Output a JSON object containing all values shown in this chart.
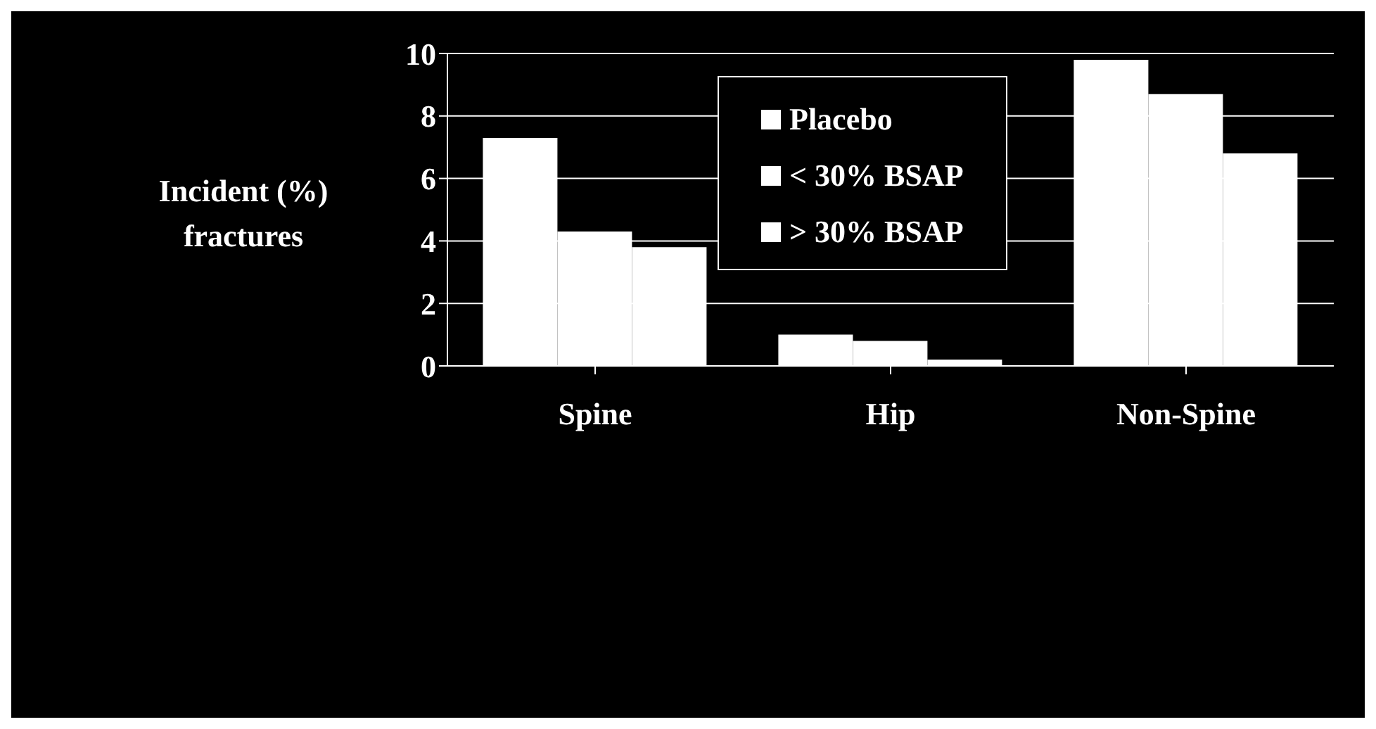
{
  "chart_data": {
    "type": "bar",
    "ylabel": "Incident (%) fractures",
    "categories": [
      "Spine",
      "Hip",
      "Non-Spine"
    ],
    "series": [
      {
        "name": "Placebo",
        "color": "#ffffff",
        "values": [
          7.3,
          1.0,
          9.8
        ]
      },
      {
        "name": "< 30% BSAP",
        "color": "#ffffff",
        "values": [
          4.3,
          0.8,
          8.7
        ]
      },
      {
        "name": "> 30% BSAP",
        "color": "#ffffff",
        "values": [
          3.8,
          0.2,
          6.8
        ]
      }
    ],
    "ylim": [
      0,
      10
    ],
    "yticks": [
      0,
      2,
      4,
      6,
      8,
      10
    ],
    "grid": "y",
    "legend": "top"
  }
}
